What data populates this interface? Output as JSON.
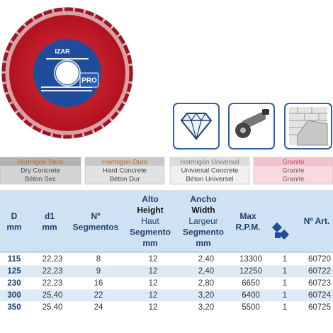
{
  "product": {
    "brand": "IZAR",
    "badge": "PRO"
  },
  "materials": [
    {
      "lines": [
        "Hormigón Seco",
        "Dry Concrete",
        "Béton Sec"
      ]
    },
    {
      "lines": [
        "Hormigón Duro",
        "Hard Concrete",
        "Béton Dur"
      ]
    },
    {
      "lines": [
        "Hormigón Universal",
        "Universal Concrete",
        "Béton Universel"
      ]
    },
    {
      "lines": [
        "Granito",
        "Granite",
        "Granite"
      ]
    }
  ],
  "table": {
    "header": [
      [
        "D",
        "mm"
      ],
      [
        "d1",
        "mm"
      ],
      [
        "Nº",
        "Segmentos"
      ],
      [
        "Alto",
        "Height",
        "Haut",
        "Segmento",
        "mm"
      ],
      [
        "Ancho",
        "Width",
        "Largeur",
        "Segmento",
        "mm"
      ],
      [
        "Max",
        "R.P.M."
      ],
      [],
      [
        "Nº Art."
      ]
    ],
    "rows": [
      [
        "115",
        "22,23",
        "8",
        "12",
        "2,40",
        "13300",
        "1",
        "60720"
      ],
      [
        "125",
        "22,23",
        "9",
        "12",
        "2,40",
        "12250",
        "1",
        "60722"
      ],
      [
        "230",
        "22,23",
        "16",
        "12",
        "2,80",
        "6650",
        "1",
        "60723"
      ],
      [
        "300",
        "25,40",
        "22",
        "12",
        "3,20",
        "6400",
        "1",
        "60724"
      ],
      [
        "350",
        "25,40",
        "24",
        "12",
        "3,20",
        "5500",
        "1",
        "60725"
      ]
    ]
  }
}
